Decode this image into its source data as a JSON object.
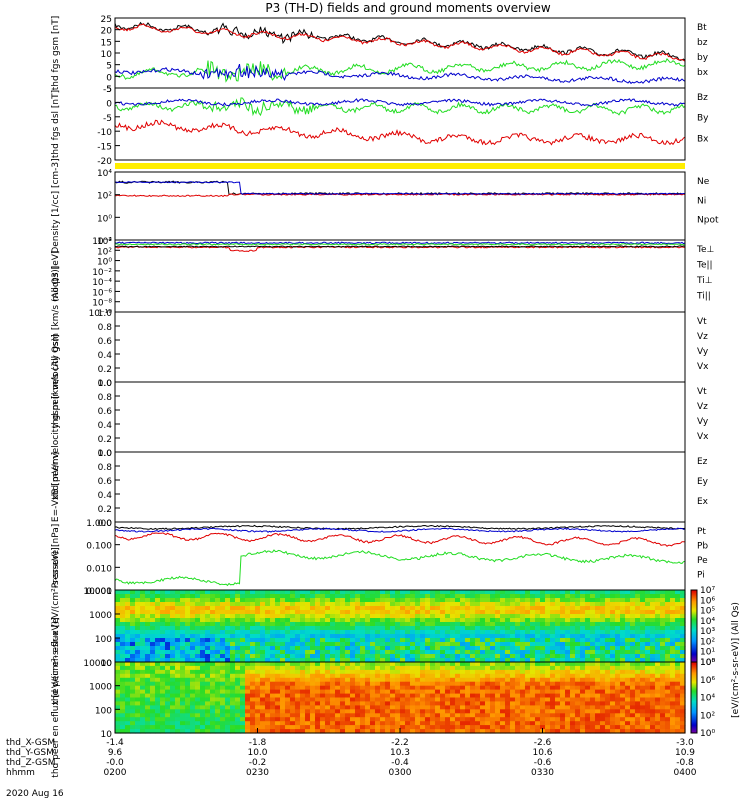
{
  "title": "P3 (TH-D) fields and ground moments overview",
  "date_label": "2020 Aug 16",
  "colors": {
    "black": "#000000",
    "red": "#e00000",
    "green": "#22dd22",
    "blue": "#0000cc",
    "yellow": "#ffee00"
  },
  "chart_data": [
    {
      "type": "line",
      "ylabel": "thd fgs gsm [nT]",
      "ylim": [
        -5,
        25
      ],
      "yticks": [
        "25",
        "20",
        "15",
        "10",
        "5",
        "0",
        "-5"
      ],
      "legend": [
        {
          "name": "Bt",
          "color": "black"
        },
        {
          "name": "bz",
          "color": "red"
        },
        {
          "name": "by",
          "color": "green"
        },
        {
          "name": "bx",
          "color": "blue"
        }
      ]
    },
    {
      "type": "line",
      "ylabel": "thd fgs dsl [nT]",
      "ylim": [
        -22,
        5
      ],
      "yticks": [
        "5",
        "0",
        "-5",
        "-10",
        "-15",
        "-20"
      ],
      "legend": [
        {
          "name": "Bz",
          "color": "red"
        },
        {
          "name": "By",
          "color": "green"
        },
        {
          "name": "Bx",
          "color": "blue"
        }
      ]
    },
    {
      "type": "line",
      "ylabel": "Density [1/cc] [cm-3]",
      "scale": "log",
      "yticks": [
        "10⁴",
        "10²",
        "10⁰",
        "10⁻²"
      ],
      "legend": [
        {
          "name": "Ne",
          "color": "red"
        },
        {
          "name": "Ni",
          "color": "black"
        },
        {
          "name": "Npot",
          "color": "blue"
        }
      ]
    },
    {
      "type": "line",
      "ylabel": "moqt3 [eV]",
      "scale": "log",
      "yticks": [
        "10⁴",
        "10²",
        "10⁰",
        "10⁻²",
        "10⁻⁴",
        "10⁻⁶",
        "10⁻⁸",
        "10⁻¹⁰"
      ],
      "legend": [
        {
          "name": "Te⊥",
          "color": "red"
        },
        {
          "name": "Te||",
          "color": "black"
        },
        {
          "name": "Ti⊥",
          "color": "blue"
        },
        {
          "name": "Ti||",
          "color": "green"
        }
      ]
    },
    {
      "type": "line",
      "ylabel": "thd peir velocity gsm [km/s (All Qs)]",
      "ylim": [
        0,
        1
      ],
      "yticks": [
        "1.0",
        "0.8",
        "0.6",
        "0.4",
        "0.2",
        "0.0"
      ],
      "legend": [
        {
          "name": "Vt",
          "color": "black"
        },
        {
          "name": "Vz",
          "color": "red"
        },
        {
          "name": "Vy",
          "color": "green"
        },
        {
          "name": "Vx",
          "color": "blue"
        }
      ]
    },
    {
      "type": "line",
      "ylabel": "thd peer velocity gsm [km/s (All Qs)]",
      "ylim": [
        0,
        1
      ],
      "yticks": [
        "1.0",
        "0.8",
        "0.6",
        "0.4",
        "0.2",
        "0.0"
      ],
      "legend": [
        {
          "name": "Vt",
          "color": "black"
        },
        {
          "name": "Vz",
          "color": "red"
        },
        {
          "name": "Vy",
          "color": "green"
        },
        {
          "name": "Vx",
          "color": "blue"
        }
      ]
    },
    {
      "type": "line",
      "ylabel": "E=-VxB [mV/m]",
      "ylim": [
        0,
        1
      ],
      "yticks": [
        "1.0",
        "0.8",
        "0.6",
        "0.4",
        "0.2",
        "0.0"
      ],
      "legend": [
        {
          "name": "Ez",
          "color": "red"
        },
        {
          "name": "Ey",
          "color": "green"
        },
        {
          "name": "Ex",
          "color": "blue"
        }
      ]
    },
    {
      "type": "line",
      "ylabel": "Pressure [nPa]",
      "scale": "log",
      "yticks": [
        "1.000",
        "0.100",
        "0.010",
        "0.001"
      ],
      "legend": [
        {
          "name": "Pt",
          "color": "black"
        },
        {
          "name": "Pb",
          "color": "red"
        },
        {
          "name": "Pe",
          "color": "green"
        },
        {
          "name": "Pi",
          "color": "blue"
        }
      ]
    },
    {
      "type": "heatmap",
      "ylabel": "thd peir en eflux [eV/(cm²-s-sr-eV)]",
      "yticks": [
        "10000",
        "1000",
        "100",
        "10"
      ],
      "colorbar": {
        "ticks": [
          "10⁷",
          "10⁶",
          "10⁵",
          "10⁴",
          "10³",
          "10²",
          "10¹",
          "10⁰"
        ],
        "label": "[eV/(cm²-s-sr-eV)] (All Qs)"
      }
    },
    {
      "type": "heatmap",
      "ylabel": "thd peer en eflux [eV/(cm²-s-sr-eV)]",
      "yticks": [
        "10000",
        "1000",
        "100",
        "10"
      ],
      "colorbar": {
        "ticks": [
          "10⁸",
          "10⁶",
          "10⁴",
          "10²",
          "10⁰"
        ],
        "label": "[eV/(cm²-s-sr-eV)]"
      }
    }
  ],
  "xaxis": {
    "rows": [
      {
        "label": "thd_X-GSM",
        "values": [
          "-1.4",
          "-1.8",
          "-2.2",
          "-2.6",
          "-3.0"
        ]
      },
      {
        "label": "thd_Y-GSM",
        "values": [
          "9.6",
          "10.0",
          "10.3",
          "10.6",
          "10.9"
        ]
      },
      {
        "label": "thd_Z-GSM",
        "values": [
          "-0.0",
          "-0.2",
          "-0.4",
          "-0.6",
          "-0.8"
        ]
      },
      {
        "label": "hhmm",
        "values": [
          "0200",
          "0230",
          "0300",
          "0330",
          "0400"
        ]
      }
    ]
  }
}
